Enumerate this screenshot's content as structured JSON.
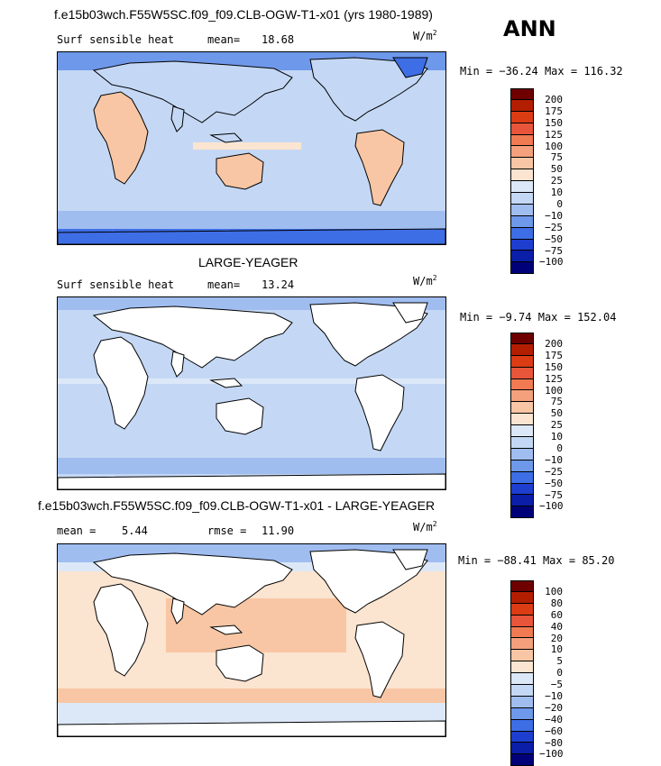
{
  "chart_data": [
    {
      "type": "heatmap",
      "title": "f.e15b03wch.F55W5SC.f09_f09.CLB-OGW-T1-x01 (yrs 1980-1989)",
      "season": "ANN",
      "variable": "Surf sensible heat",
      "mean_label": "mean=",
      "mean": "18.68",
      "units_base": "W/m",
      "units_exp": "2",
      "min_label": "Min =",
      "min": "−36.24",
      "max_label": "Max =",
      "max": "116.32",
      "levels": [
        "200",
        "175",
        "150",
        "125",
        "100",
        "75",
        "50",
        "25",
        "10",
        "0",
        "−10",
        "−25",
        "−50",
        "−75",
        "−100"
      ],
      "colors": [
        "#6e0000",
        "#b41e00",
        "#dc3c14",
        "#e8553a",
        "#f07a52",
        "#f5a07c",
        "#f8c6a4",
        "#fbe4d0",
        "#dce8f8",
        "#c4d8f5",
        "#a0bdf0",
        "#6e98ea",
        "#3e6ee6",
        "#1e3ed0",
        "#0a1ea8",
        "#000078"
      ]
    },
    {
      "type": "heatmap",
      "title": "LARGE-YEAGER",
      "variable": "Surf sensible heat",
      "mean_label": "mean=",
      "mean": "13.24",
      "units_base": "W/m",
      "units_exp": "2",
      "min_label": "Min =",
      "min": "−9.74",
      "max_label": "Max =",
      "max": "152.04",
      "levels": [
        "200",
        "175",
        "150",
        "125",
        "100",
        "75",
        "50",
        "25",
        "10",
        "0",
        "−10",
        "−25",
        "−50",
        "−75",
        "−100"
      ],
      "colors": [
        "#6e0000",
        "#b41e00",
        "#dc3c14",
        "#e8553a",
        "#f07a52",
        "#f5a07c",
        "#f8c6a4",
        "#fbe4d0",
        "#dce8f8",
        "#c4d8f5",
        "#a0bdf0",
        "#6e98ea",
        "#3e6ee6",
        "#1e3ed0",
        "#0a1ea8",
        "#000078"
      ]
    },
    {
      "type": "heatmap",
      "title": "f.e15b03wch.F55W5SC.f09_f09.CLB-OGW-T1-x01 - LARGE-YEAGER",
      "mean_label": "mean =",
      "mean": "5.44",
      "rmse_label": "rmse =",
      "rmse": "11.90",
      "units_base": "W/m",
      "units_exp": "2",
      "min_label": "Min =",
      "min": "−88.41",
      "max_label": "Max =",
      "max": "85.20",
      "levels": [
        "100",
        "80",
        "60",
        "40",
        "20",
        "10",
        "5",
        "0",
        "−5",
        "−10",
        "−20",
        "−40",
        "−60",
        "−80",
        "−100"
      ],
      "colors": [
        "#6e0000",
        "#b41e00",
        "#dc3c14",
        "#e8553a",
        "#f07a52",
        "#f5a07c",
        "#f8c6a4",
        "#fbe4d0",
        "#dce8f8",
        "#c4d8f5",
        "#a0bdf0",
        "#6e98ea",
        "#3e6ee6",
        "#1e3ed0",
        "#0a1ea8",
        "#000078"
      ]
    }
  ]
}
